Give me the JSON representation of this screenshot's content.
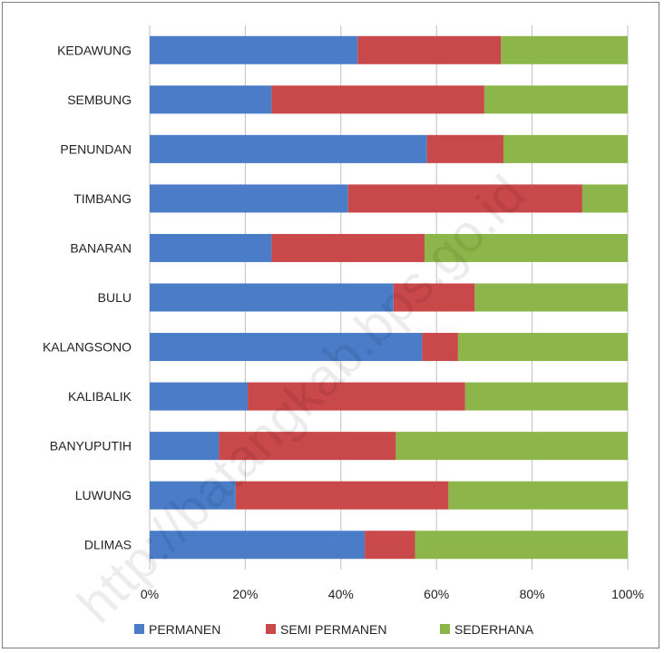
{
  "watermark": "http://batangkab.bps.go.id",
  "colors": {
    "PERMANEN": "#4a7cc7",
    "SEMI PERMANEN": "#c9484a",
    "SEDERHANA": "#8db64a",
    "grid": "#bfbfbf",
    "frame": "#7f7f7f"
  },
  "chart_data": {
    "type": "bar",
    "orientation": "horizontal",
    "stacked": "percent",
    "categories": [
      "KEDAWUNG",
      "SEMBUNG",
      "PENUNDAN",
      "TIMBANG",
      "BANARAN",
      "BULU",
      "KALANGSONO",
      "KALIBALIK",
      "BANYUPUTIH",
      "LUWUNG",
      "DLIMAS"
    ],
    "series": [
      {
        "name": "PERMANEN",
        "values": [
          43.5,
          25.5,
          58,
          41.5,
          25.5,
          51,
          57,
          20.5,
          14.5,
          18,
          45
        ]
      },
      {
        "name": "SEMI PERMANEN",
        "values": [
          30,
          44.5,
          16,
          49,
          32,
          17,
          7.5,
          45.5,
          37,
          44.5,
          10.5
        ]
      },
      {
        "name": "SEDERHANA",
        "values": [
          26.5,
          30,
          26,
          9.5,
          42.5,
          32,
          35.5,
          34,
          48.5,
          37.5,
          44.5
        ]
      }
    ],
    "xlim": [
      0,
      100
    ],
    "xticks": [
      "0%",
      "20%",
      "40%",
      "60%",
      "80%",
      "100%"
    ],
    "grid": true,
    "legend_position": "bottom",
    "title": "",
    "xlabel": "",
    "ylabel": ""
  }
}
